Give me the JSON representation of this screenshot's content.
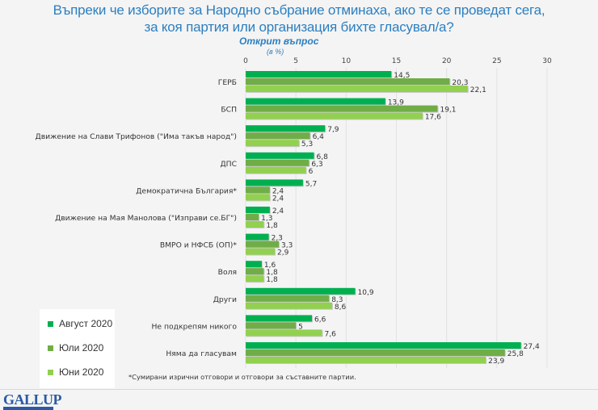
{
  "header": {
    "title_line1": "Въпреки че изборите за Народно събрание отминаха, ако те се проведат сега,",
    "title_line2": "за коя партия или организация бихте гласувал/а?",
    "subtitle": "Открит въпрос",
    "unit": "(в %)"
  },
  "chart_data": {
    "type": "bar",
    "orientation": "horizontal",
    "title": "Въпреки че изборите за Народно събрание отминаха, ако те се проведат сега, за коя партия или организация бихте гласувал/а?",
    "subtitle": "Открит въпрос (в %)",
    "xlim": [
      0,
      30
    ],
    "xticks": [
      0,
      5,
      10,
      15,
      20,
      25,
      30
    ],
    "grid": true,
    "legend_position": "bottom-left",
    "categories": [
      "ГЕРБ",
      "БСП",
      "Движение на Слави Трифонов (\"Има такъв народ\")",
      "ДПС",
      "Демократична България*",
      "Движение на Мая Манолова (\"Изправи се.БГ\")",
      "ВМРО и НФСБ (ОП)*",
      "Воля",
      "Други",
      "Не подкрепям никого",
      "Няма да гласувам"
    ],
    "series": [
      {
        "name": "Август 2020",
        "color": "#00b050",
        "values": [
          14.5,
          13.9,
          7.9,
          6.8,
          5.7,
          2.4,
          2.3,
          1.6,
          10.9,
          6.6,
          27.4
        ],
        "labels": [
          "14,5",
          "13,9",
          "7,9",
          "6,8",
          "5,7",
          "2,4",
          "2,3",
          "1,6",
          "10,9",
          "6,6",
          "27,4"
        ]
      },
      {
        "name": "Юли 2020",
        "color": "#70ad47",
        "values": [
          20.3,
          19.1,
          6.4,
          6.3,
          2.4,
          1.3,
          3.3,
          1.8,
          8.3,
          5,
          25.8
        ],
        "labels": [
          "20,3",
          "19,1",
          "6,4",
          "6,3",
          "2,4",
          "1,3",
          "3,3",
          "1,8",
          "8,3",
          "5",
          "25,8"
        ]
      },
      {
        "name": "Юни 2020",
        "color": "#92d050",
        "values": [
          22.1,
          17.6,
          5.3,
          6,
          2.4,
          1.8,
          2.9,
          1.8,
          8.6,
          7.6,
          23.9
        ],
        "labels": [
          "22,1",
          "17,6",
          "5,3",
          "6",
          "2,4",
          "1,8",
          "2,9",
          "1,8",
          "8,6",
          "7,6",
          "23,9"
        ]
      }
    ]
  },
  "footnote": "*Сумирани изрични отговори и отговори за съставните партии.",
  "logo": {
    "text": "GALLUP",
    "subtext": "INTERNATIONAL"
  }
}
